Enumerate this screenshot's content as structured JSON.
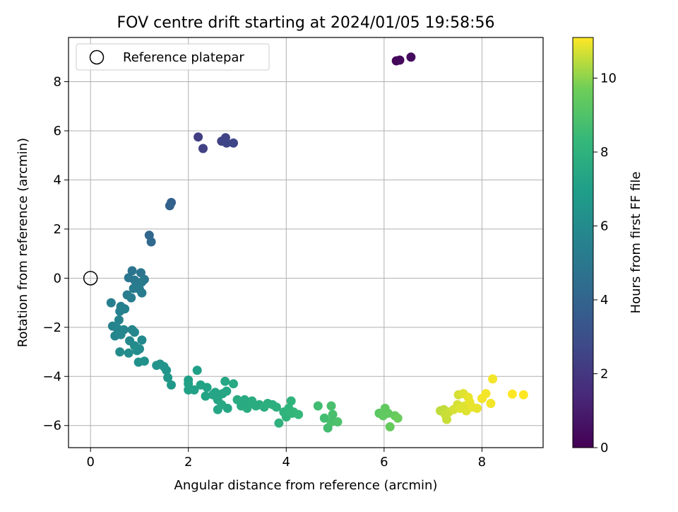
{
  "chart_data": {
    "type": "scatter",
    "title": "FOV centre drift starting at 2024/01/05 19:58:56",
    "xlabel": "Angular distance from reference (arcmin)",
    "ylabel": "Rotation from reference (arcmin)",
    "xlim": [
      -0.45,
      9.25
    ],
    "ylim": [
      -6.9,
      9.8
    ],
    "xticks": [
      0,
      2,
      4,
      6,
      8
    ],
    "yticks": [
      -6,
      -4,
      -2,
      0,
      2,
      4,
      6,
      8
    ],
    "grid": true,
    "legend": {
      "position": "top-left",
      "entries": [
        {
          "label": "Reference platepar",
          "marker": "open-circle"
        }
      ]
    },
    "reference_point": {
      "x": 0,
      "y": 0
    },
    "colorbar": {
      "label": "Hours from first FF file",
      "colormap": "viridis",
      "range": [
        0,
        11.1
      ],
      "ticks": [
        0,
        2,
        4,
        6,
        8,
        10
      ]
    },
    "points": [
      [
        6.25,
        8.85,
        0.2
      ],
      [
        6.32,
        8.88,
        0.3
      ],
      [
        6.55,
        9.0,
        0.4
      ],
      [
        2.2,
        5.75,
        2.3
      ],
      [
        2.3,
        5.28,
        2.4
      ],
      [
        2.68,
        5.58,
        2.5
      ],
      [
        2.76,
        5.72,
        2.5
      ],
      [
        2.78,
        5.5,
        2.6
      ],
      [
        2.92,
        5.5,
        2.6
      ],
      [
        1.65,
        3.08,
        3.8
      ],
      [
        1.62,
        2.95,
        3.9
      ],
      [
        1.2,
        1.75,
        4.1
      ],
      [
        1.24,
        1.48,
        4.2
      ],
      [
        0.85,
        0.3,
        4.8
      ],
      [
        1.03,
        0.22,
        4.9
      ],
      [
        0.78,
        0.02,
        4.9
      ],
      [
        1.1,
        -0.05,
        5.0
      ],
      [
        0.9,
        -0.08,
        5.0
      ],
      [
        1.05,
        -0.15,
        5.1
      ],
      [
        0.95,
        -0.28,
        5.1
      ],
      [
        1.0,
        -0.45,
        5.2
      ],
      [
        0.88,
        -0.42,
        5.2
      ],
      [
        1.05,
        -0.6,
        5.2
      ],
      [
        0.75,
        -0.68,
        5.3
      ],
      [
        0.83,
        -0.8,
        5.3
      ],
      [
        0.42,
        -1.0,
        5.4
      ],
      [
        0.62,
        -1.15,
        5.4
      ],
      [
        0.7,
        -1.25,
        5.5
      ],
      [
        0.6,
        -1.35,
        5.5
      ],
      [
        0.58,
        -1.7,
        5.6
      ],
      [
        0.45,
        -1.95,
        5.6
      ],
      [
        0.55,
        -2.05,
        5.7
      ],
      [
        0.68,
        -2.1,
        5.7
      ],
      [
        0.85,
        -2.1,
        5.7
      ],
      [
        0.9,
        -2.2,
        5.8
      ],
      [
        0.62,
        -2.3,
        5.8
      ],
      [
        0.5,
        -2.35,
        5.8
      ],
      [
        0.8,
        -2.55,
        5.9
      ],
      [
        1.05,
        -2.52,
        5.9
      ],
      [
        0.9,
        -2.75,
        6.0
      ],
      [
        1.0,
        -2.88,
        6.0
      ],
      [
        0.6,
        -3.0,
        6.0
      ],
      [
        0.78,
        -3.05,
        6.1
      ],
      [
        0.95,
        -2.95,
        6.1
      ],
      [
        1.1,
        -3.38,
        6.3
      ],
      [
        0.98,
        -3.42,
        6.3
      ],
      [
        1.35,
        -3.55,
        6.4
      ],
      [
        1.42,
        -3.5,
        6.4
      ],
      [
        1.5,
        -3.6,
        6.5
      ],
      [
        1.55,
        -3.75,
        6.5
      ],
      [
        1.58,
        -4.05,
        6.6
      ],
      [
        1.65,
        -4.35,
        6.7
      ],
      [
        2.18,
        -3.75,
        7.0
      ],
      [
        2.0,
        -4.15,
        7.0
      ],
      [
        2.0,
        -4.3,
        7.1
      ],
      [
        2.0,
        -4.55,
        7.1
      ],
      [
        2.12,
        -4.55,
        7.1
      ],
      [
        2.25,
        -4.35,
        7.2
      ],
      [
        2.38,
        -4.45,
        7.2
      ],
      [
        2.35,
        -4.8,
        7.2
      ],
      [
        2.5,
        -4.75,
        7.3
      ],
      [
        2.55,
        -4.65,
        7.3
      ],
      [
        2.6,
        -4.95,
        7.3
      ],
      [
        2.7,
        -4.7,
        7.3
      ],
      [
        2.78,
        -4.6,
        7.4
      ],
      [
        2.75,
        -4.2,
        7.4
      ],
      [
        2.6,
        -5.35,
        7.4
      ],
      [
        2.8,
        -5.3,
        7.4
      ],
      [
        2.68,
        -5.15,
        7.5
      ],
      [
        2.92,
        -4.3,
        7.5
      ],
      [
        3.0,
        -4.95,
        7.6
      ],
      [
        3.08,
        -5.2,
        7.6
      ],
      [
        3.15,
        -4.95,
        7.6
      ],
      [
        3.22,
        -5.1,
        7.6
      ],
      [
        3.2,
        -5.3,
        7.7
      ],
      [
        3.3,
        -5.0,
        7.7
      ],
      [
        3.38,
        -5.2,
        7.7
      ],
      [
        3.45,
        -5.15,
        7.7
      ],
      [
        3.55,
        -5.25,
        7.8
      ],
      [
        3.62,
        -5.1,
        7.8
      ],
      [
        3.72,
        -5.15,
        7.8
      ],
      [
        3.8,
        -5.25,
        7.8
      ],
      [
        3.85,
        -5.9,
        8.0
      ],
      [
        3.95,
        -5.45,
        8.0
      ],
      [
        4.0,
        -5.65,
        8.1
      ],
      [
        4.05,
        -5.3,
        8.1
      ],
      [
        4.1,
        -5.0,
        8.1
      ],
      [
        4.12,
        -5.5,
        8.2
      ],
      [
        4.15,
        -5.45,
        8.2
      ],
      [
        4.25,
        -5.55,
        8.3
      ],
      [
        4.65,
        -5.2,
        8.6
      ],
      [
        4.78,
        -5.7,
        8.7
      ],
      [
        4.85,
        -6.1,
        8.7
      ],
      [
        4.92,
        -5.2,
        8.8
      ],
      [
        4.95,
        -5.55,
        8.8
      ],
      [
        4.92,
        -5.85,
        8.8
      ],
      [
        5.05,
        -5.85,
        8.9
      ],
      [
        5.9,
        -5.5,
        9.3
      ],
      [
        5.98,
        -5.6,
        9.4
      ],
      [
        6.02,
        -5.3,
        9.4
      ],
      [
        6.08,
        -5.5,
        9.4
      ],
      [
        6.12,
        -6.05,
        9.5
      ],
      [
        6.22,
        -5.6,
        9.5
      ],
      [
        6.28,
        -5.7,
        9.6
      ],
      [
        7.15,
        -5.4,
        10.5
      ],
      [
        7.22,
        -5.35,
        10.5
      ],
      [
        7.25,
        -5.55,
        10.6
      ],
      [
        7.28,
        -5.75,
        10.6
      ],
      [
        7.32,
        -5.45,
        10.6
      ],
      [
        7.42,
        -5.35,
        10.7
      ],
      [
        7.5,
        -5.15,
        10.7
      ],
      [
        7.52,
        -4.75,
        10.7
      ],
      [
        7.55,
        -5.3,
        10.8
      ],
      [
        7.62,
        -4.7,
        10.8
      ],
      [
        7.65,
        -5.2,
        10.8
      ],
      [
        7.68,
        -5.4,
        10.8
      ],
      [
        7.72,
        -4.85,
        10.9
      ],
      [
        7.75,
        -5.05,
        10.9
      ],
      [
        7.8,
        -5.25,
        10.9
      ],
      [
        7.9,
        -5.3,
        10.9
      ],
      [
        8.0,
        -4.9,
        11.0
      ],
      [
        8.08,
        -4.7,
        11.0
      ],
      [
        8.18,
        -5.1,
        11.0
      ],
      [
        8.22,
        -4.1,
        11.0
      ],
      [
        8.62,
        -4.72,
        11.1
      ],
      [
        8.85,
        -4.75,
        11.1
      ]
    ]
  }
}
